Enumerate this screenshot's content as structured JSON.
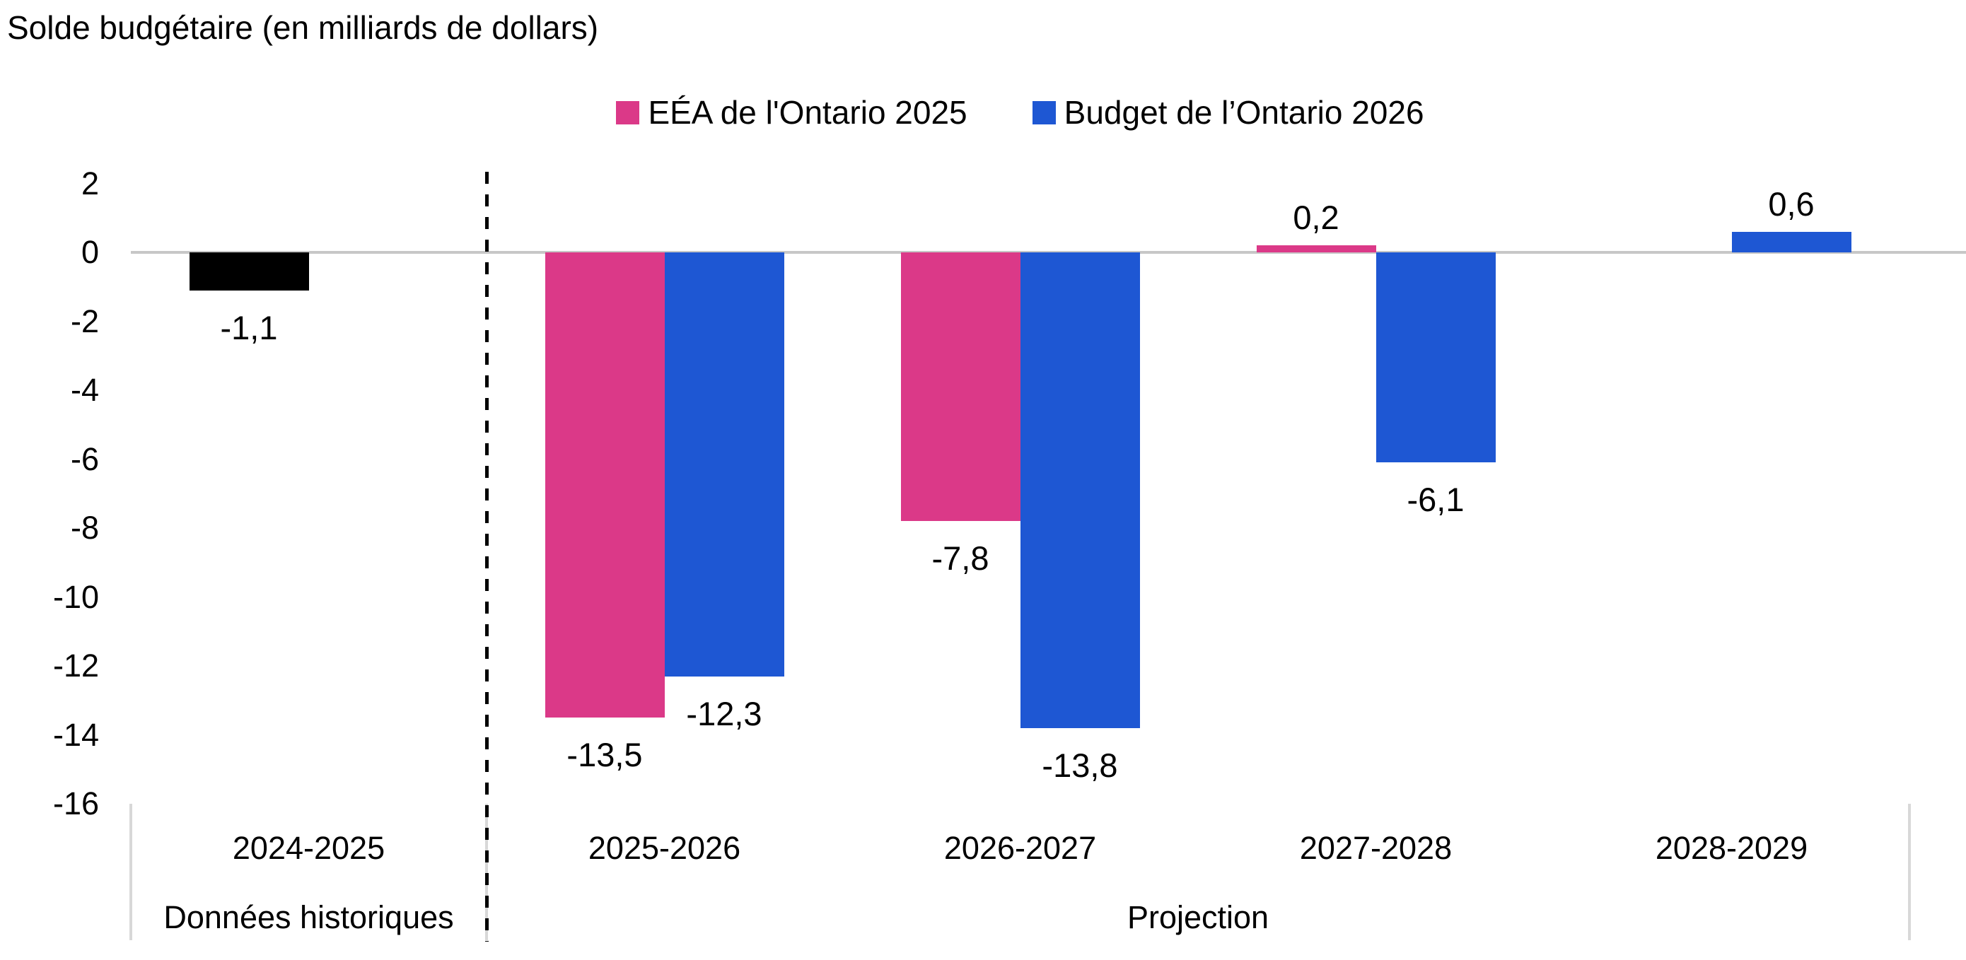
{
  "title": "Solde budgétaire (en milliards de dollars)",
  "legend": [
    {
      "label": "EÉA de l'Ontario 2025",
      "color": "#DB3988"
    },
    {
      "label": "Budget de l’Ontario 2026",
      "color": "#1E57D3"
    }
  ],
  "chart_data": {
    "type": "bar",
    "title": "Solde budgétaire (en milliards de dollars)",
    "categories": [
      "2024-2025",
      "2025-2026",
      "2026-2027",
      "2027-2028",
      "2028-2029"
    ],
    "series": [
      {
        "name": "EÉA de l'Ontario 2025",
        "color": "#DB3988",
        "values": [
          -1.1,
          -13.5,
          -7.8,
          0.2,
          null
        ],
        "labels": [
          "-1,1",
          "-13,5",
          "-7,8",
          "0,2",
          ""
        ],
        "point_colors": [
          "#000000",
          null,
          null,
          null,
          null
        ]
      },
      {
        "name": "Budget de l’Ontario 2026",
        "color": "#1E57D3",
        "values": [
          null,
          -12.3,
          -13.8,
          -6.1,
          0.6
        ],
        "labels": [
          "",
          "-12,3",
          "-13,8",
          "-6,1",
          "0,6"
        ],
        "point_colors": [
          null,
          null,
          null,
          null,
          null
        ]
      }
    ],
    "ylim": [
      -16,
      2
    ],
    "ytick_step": 2,
    "yticks": [
      2,
      0,
      -2,
      -4,
      -6,
      -8,
      -10,
      -12,
      -14,
      -16
    ],
    "ytick_labels": [
      "2",
      "0",
      "-2",
      "-4",
      "-6",
      "-8",
      "-10",
      "-12",
      "-14",
      "-16"
    ],
    "axis_groups": [
      {
        "label": "Données historiques",
        "from_category": 0,
        "to_category": 1
      },
      {
        "label": "Projection",
        "from_category": 1,
        "to_category": 5
      }
    ],
    "separator": {
      "style": "dashed",
      "after_category": 0,
      "color": "#000000"
    },
    "grid": "zero-line-only",
    "legend_position": "top-center",
    "colors": {
      "zero_line": "#C7C7C7",
      "axis_tick_line": "#D8D8D8",
      "text": "#000000",
      "background": "#FFFFFF"
    }
  }
}
